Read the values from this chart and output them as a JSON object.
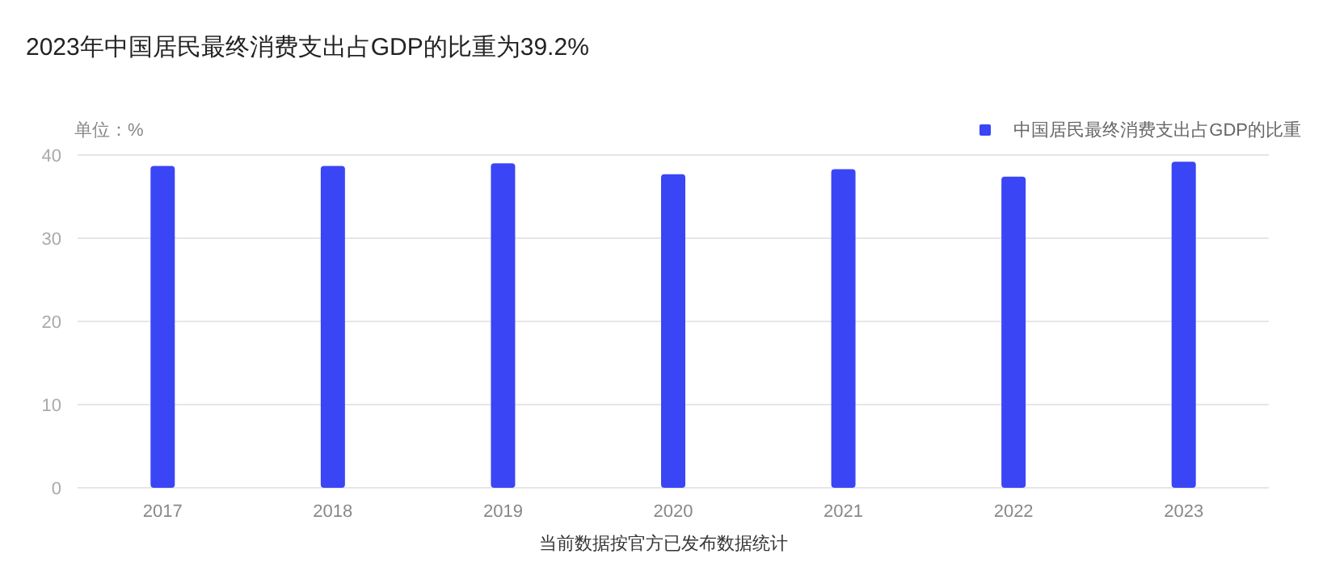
{
  "chart_data": {
    "type": "bar",
    "title": "2023年中国居民最终消费支出占GDP的比重为39.2%",
    "ylabel": "单位：%",
    "annotations": [
      "当前数据按官方已发布数据统计"
    ],
    "categories": [
      "2017",
      "2018",
      "2019",
      "2020",
      "2021",
      "2022",
      "2023"
    ],
    "series": [
      {
        "name": "中国居民最终消费支出占GDP的比重",
        "color": "#3a45f5",
        "values": [
          38.7,
          38.7,
          39.0,
          37.7,
          38.3,
          37.4,
          39.2
        ]
      }
    ],
    "ylim": [
      0,
      40
    ],
    "yticks": [
      0,
      10,
      20,
      30,
      40
    ],
    "grid": "y",
    "legend": "top right"
  }
}
